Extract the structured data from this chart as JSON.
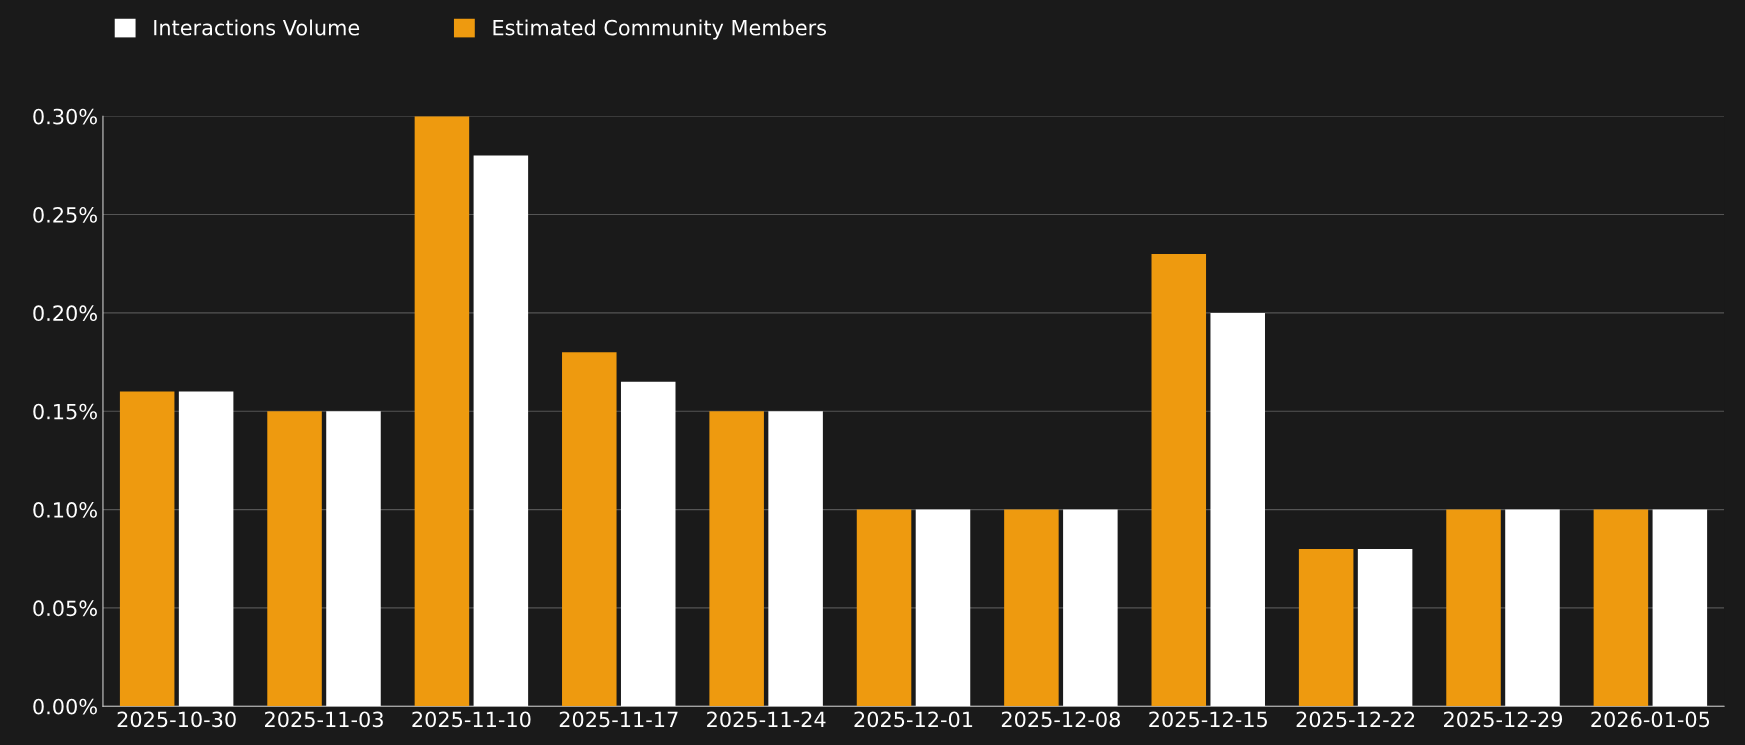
{
  "chart_data": {
    "type": "bar",
    "categories": [
      "2025-10-30",
      "2025-11-03",
      "2025-11-10",
      "2025-11-17",
      "2025-11-24",
      "2025-12-01",
      "2025-12-08",
      "2025-12-15",
      "2025-12-22",
      "2025-12-29",
      "2026-01-05"
    ],
    "series": [
      {
        "name": "Estimated Community Members",
        "color": "#ee9a0f",
        "values": [
          0.16,
          0.15,
          0.3,
          0.18,
          0.15,
          0.1,
          0.1,
          0.23,
          0.08,
          0.1,
          0.1
        ]
      },
      {
        "name": "Interactions Volume",
        "color": "#ffffff",
        "values": [
          0.16,
          0.15,
          0.28,
          0.165,
          0.15,
          0.1,
          0.1,
          0.2,
          0.08,
          0.1,
          0.1
        ]
      }
    ],
    "ylim": [
      0,
      0.3
    ],
    "yticks": [
      {
        "value": 0,
        "label": "0.00%"
      },
      {
        "value": 0.05,
        "label": "0.05%"
      },
      {
        "value": 0.1,
        "label": "0.10%"
      },
      {
        "value": 0.15,
        "label": "0.15%"
      },
      {
        "value": 0.2,
        "label": "0.20%"
      },
      {
        "value": 0.25,
        "label": "0.25%"
      },
      {
        "value": 0.3,
        "label": "0.30%"
      }
    ],
    "grid": "y",
    "legend": "top left"
  }
}
